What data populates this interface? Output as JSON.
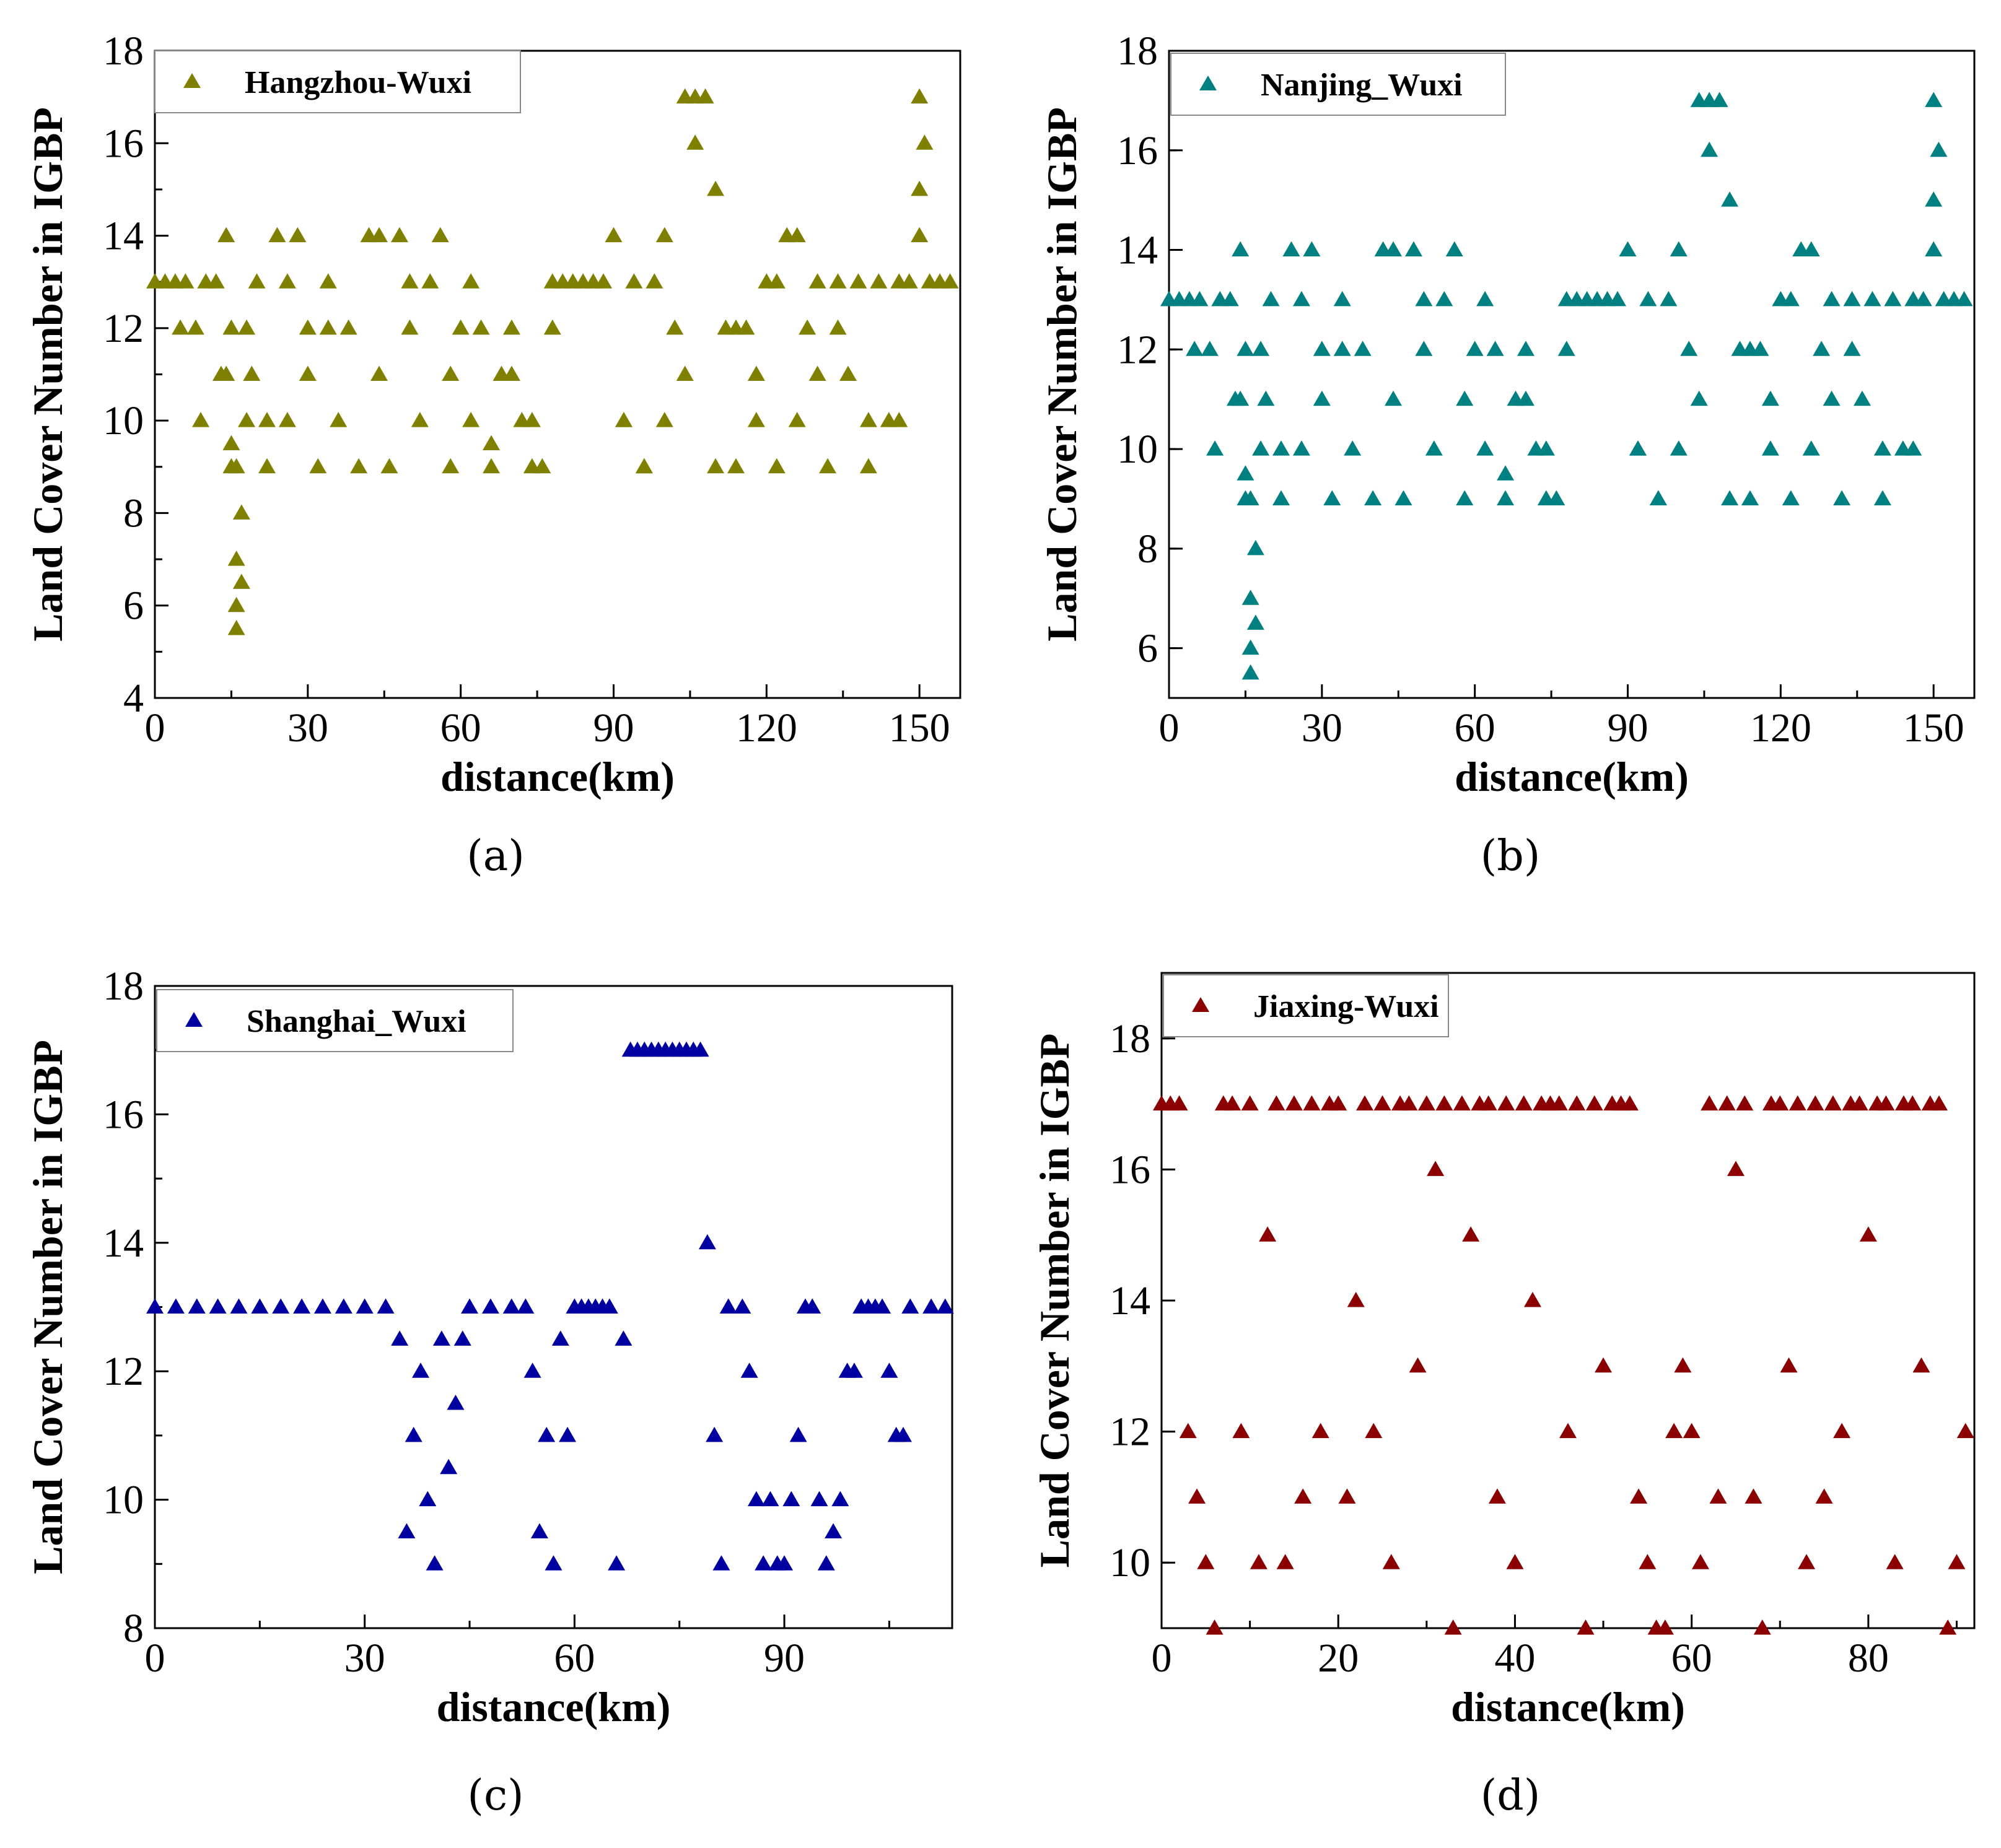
{
  "figure": {
    "panels": [
      {
        "id": "a",
        "caption": "(a)",
        "series_name": "Hangzhou-Wuxi",
        "color": "#808000",
        "xlabel": "distance(km)",
        "ylabel": "Land Cover Number in IGBP",
        "xticks": [
          "0",
          "30",
          "60",
          "90",
          "120",
          "150"
        ],
        "yticks": [
          "4",
          "6",
          "8",
          "10",
          "12",
          "14",
          "16",
          "18"
        ]
      },
      {
        "id": "b",
        "caption": "(b)",
        "series_name": "Nanjing_Wuxi",
        "color": "#008080",
        "xlabel": "distance(km)",
        "ylabel": "Land Cover Number in IGBP",
        "xticks": [
          "0",
          "30",
          "60",
          "90",
          "120",
          "150"
        ],
        "yticks": [
          "6",
          "8",
          "10",
          "12",
          "14",
          "16",
          "18"
        ]
      },
      {
        "id": "c",
        "caption": "(c)",
        "series_name": "Shanghai_Wuxi",
        "color": "#0000a0",
        "xlabel": "distance(km)",
        "ylabel": "Land Cover Number in IGBP",
        "xticks": [
          "0",
          "30",
          "60",
          "90"
        ],
        "yticks": [
          "8",
          "10",
          "12",
          "14",
          "16",
          "18"
        ]
      },
      {
        "id": "d",
        "caption": "(d)",
        "series_name": "Jiaxing-Wuxi",
        "color": "#8b0000",
        "xlabel": "distance(km)",
        "ylabel": "Land Cover Number in IGBP",
        "xticks": [
          "0",
          "20",
          "40",
          "60",
          "80"
        ],
        "yticks": [
          "10",
          "12",
          "14",
          "16",
          "18"
        ]
      }
    ]
  },
  "chart_data": [
    {
      "type": "scatter",
      "panel": "a",
      "marker": "triangle",
      "xlabel": "distance(km)",
      "ylabel": "Land Cover Number in IGBP",
      "xlim": [
        0,
        158
      ],
      "ylim": [
        4,
        18
      ],
      "series": [
        {
          "name": "Hangzhou-Wuxi",
          "color": "#808000",
          "x": [
            0,
            2,
            4,
            6,
            8,
            10,
            12,
            13,
            14,
            15,
            16,
            17,
            18,
            19,
            20,
            22,
            24,
            26,
            28,
            30,
            32,
            34,
            36,
            38,
            40,
            42,
            44,
            46,
            48,
            50,
            52,
            54,
            56,
            58,
            60,
            62,
            64,
            66,
            68,
            70,
            72,
            74,
            76,
            78,
            80,
            82,
            84,
            86,
            88,
            90,
            92,
            94,
            96,
            98,
            100,
            102,
            104,
            106,
            108,
            110,
            112,
            114,
            116,
            118,
            120,
            122,
            124,
            126,
            128,
            130,
            132,
            134,
            136,
            138,
            140,
            142,
            144,
            146,
            148,
            150,
            152,
            154,
            156,
            14,
            15,
            16,
            16,
            17,
            16,
            15,
            5,
            9,
            18,
            22,
            26,
            30,
            34,
            44,
            50,
            58,
            62,
            66,
            70,
            74,
            78,
            92,
            96,
            100,
            104,
            106,
            110,
            114,
            118,
            122,
            126,
            130,
            134,
            140,
            146,
            150,
            151,
            150
          ],
          "y": [
            13,
            13,
            13,
            13,
            12,
            13,
            13,
            11,
            14,
            9,
            5.5,
            8,
            10,
            11,
            13,
            9,
            14,
            10,
            14,
            12,
            9,
            13,
            10,
            12,
            9,
            14,
            14,
            9,
            14,
            12,
            10,
            13,
            14,
            9,
            12,
            10,
            12,
            9,
            11,
            12,
            10,
            9,
            9,
            13,
            13,
            13,
            13,
            13,
            13,
            14,
            10,
            13,
            9,
            13,
            10,
            12,
            17,
            17,
            17,
            9,
            12,
            9,
            12,
            11,
            13,
            9,
            14,
            10,
            12,
            13,
            9,
            13,
            11,
            13,
            9,
            13,
            10,
            13,
            13,
            17,
            13,
            13,
            13,
            11,
            12,
            6,
            7,
            6.5,
            9,
            9.5,
            12,
            10,
            12,
            10,
            13,
            11,
            12,
            11,
            13,
            11,
            13,
            9.5,
            11,
            10,
            12,
            10,
            9,
            14,
            11,
            16,
            15,
            12,
            10,
            13,
            14,
            11,
            12,
            10,
            10,
            15,
            16,
            14
          ]
        }
      ]
    },
    {
      "type": "scatter",
      "panel": "b",
      "marker": "triangle",
      "xlabel": "distance(km)",
      "ylabel": "Land Cover Number in IGBP",
      "xlim": [
        0,
        158
      ],
      "ylim": [
        5,
        18
      ],
      "series": [
        {
          "name": "Nanjing_Wuxi",
          "color": "#008080",
          "x": [
            0,
            2,
            4,
            6,
            8,
            10,
            12,
            13,
            14,
            15,
            16,
            17,
            18,
            19,
            20,
            22,
            24,
            26,
            28,
            30,
            32,
            34,
            36,
            38,
            40,
            42,
            44,
            46,
            48,
            50,
            52,
            54,
            56,
            58,
            60,
            62,
            64,
            66,
            68,
            70,
            72,
            74,
            76,
            78,
            80,
            82,
            84,
            86,
            88,
            90,
            92,
            94,
            96,
            98,
            100,
            102,
            104,
            106,
            108,
            110,
            112,
            114,
            116,
            118,
            120,
            122,
            124,
            126,
            128,
            130,
            132,
            134,
            136,
            138,
            140,
            142,
            144,
            146,
            148,
            150,
            152,
            154,
            156,
            14,
            15,
            16,
            16,
            17,
            16,
            15,
            5,
            9,
            18,
            22,
            26,
            30,
            34,
            44,
            50,
            58,
            62,
            66,
            70,
            74,
            78,
            92,
            96,
            100,
            104,
            106,
            110,
            114,
            118,
            122,
            126,
            130,
            134,
            140,
            146,
            150,
            151,
            150
          ],
          "y": [
            13,
            13,
            13,
            13,
            12,
            13,
            13,
            11,
            14,
            9,
            5.5,
            8,
            10,
            11,
            13,
            9,
            14,
            10,
            14,
            12,
            9,
            13,
            10,
            12,
            9,
            14,
            14,
            9,
            14,
            12,
            10,
            13,
            14,
            9,
            12,
            10,
            12,
            9,
            11,
            12,
            10,
            9,
            9,
            13,
            13,
            13,
            13,
            13,
            13,
            14,
            10,
            13,
            9,
            13,
            10,
            12,
            17,
            17,
            17,
            9,
            12,
            9,
            12,
            11,
            13,
            9,
            14,
            10,
            12,
            13,
            9,
            13,
            11,
            13,
            9,
            13,
            10,
            13,
            13,
            17,
            13,
            13,
            13,
            11,
            12,
            6,
            7,
            6.5,
            9,
            9.5,
            12,
            10,
            12,
            10,
            13,
            11,
            12,
            11,
            13,
            11,
            13,
            9.5,
            11,
            10,
            12,
            10,
            9,
            14,
            11,
            16,
            15,
            12,
            10,
            13,
            14,
            11,
            12,
            10,
            10,
            15,
            16,
            14
          ]
        }
      ]
    },
    {
      "type": "scatter",
      "panel": "c",
      "marker": "triangle",
      "xlabel": "distance(km)",
      "ylabel": "Land Cover Number in IGBP",
      "xlim": [
        0,
        114
      ],
      "ylim": [
        8,
        18
      ],
      "series": [
        {
          "name": "Shanghai_Wuxi",
          "color": "#0000a0",
          "x": [
            0,
            3,
            6,
            9,
            12,
            15,
            18,
            21,
            24,
            27,
            30,
            33,
            35,
            36,
            37,
            38,
            39,
            40,
            41,
            42,
            43,
            44,
            45,
            48,
            51,
            53,
            54,
            55,
            56,
            57,
            58,
            59,
            60,
            61,
            62,
            63,
            64,
            65,
            66,
            67,
            68,
            69,
            70,
            71,
            72,
            73,
            74,
            75,
            76,
            77,
            78,
            79,
            80,
            81,
            82,
            84,
            85,
            86,
            87,
            88,
            89,
            90,
            91,
            92,
            93,
            94,
            95,
            96,
            97,
            98,
            99,
            100,
            101,
            102,
            103,
            104,
            105,
            106,
            107,
            108,
            111,
            113
          ],
          "y": [
            13,
            13,
            13,
            13,
            13,
            13,
            13,
            13,
            13,
            13,
            13,
            13,
            12.5,
            9.5,
            11,
            12,
            10,
            9,
            12.5,
            10.5,
            11.5,
            12.5,
            13,
            13,
            13,
            13,
            12,
            9.5,
            11,
            9,
            12.5,
            11,
            13,
            13,
            13,
            13,
            13,
            13,
            9,
            12.5,
            17,
            17,
            17,
            17,
            17,
            17,
            17,
            17,
            17,
            17,
            17,
            14,
            11,
            9,
            13,
            13,
            12,
            10,
            9,
            10,
            9,
            9,
            10,
            11,
            13,
            13,
            10,
            9,
            9.5,
            10,
            12,
            12,
            13,
            13,
            13,
            13,
            12,
            11,
            11,
            13,
            13,
            13
          ]
        }
      ]
    },
    {
      "type": "scatter",
      "panel": "d",
      "marker": "triangle",
      "xlabel": "distance(km)",
      "ylabel": "Land Cover Number in IGBP",
      "xlim": [
        0,
        92
      ],
      "ylim": [
        9,
        19
      ],
      "series": [
        {
          "name": "Jiaxing-Wuxi",
          "color": "#8b0000",
          "x": [
            0,
            1,
            2,
            3,
            4,
            5,
            6,
            7,
            8,
            9,
            10,
            11,
            12,
            13,
            14,
            15,
            16,
            17,
            18,
            19,
            20,
            21,
            22,
            23,
            24,
            25,
            26,
            27,
            28,
            29,
            30,
            31,
            32,
            33,
            34,
            35,
            36,
            37,
            38,
            39,
            40,
            41,
            42,
            43,
            44,
            45,
            46,
            47,
            48,
            49,
            50,
            51,
            52,
            53,
            54,
            55,
            56,
            57,
            58,
            59,
            60,
            61,
            62,
            63,
            64,
            65,
            66,
            67,
            68,
            69,
            70,
            71,
            72,
            73,
            74,
            75,
            76,
            77,
            78,
            79,
            80,
            81,
            82,
            83,
            84,
            85,
            86,
            87,
            88,
            89,
            90,
            91
          ],
          "y": [
            17,
            17,
            17,
            12,
            11,
            10,
            9,
            17,
            17,
            12,
            17,
            10,
            15,
            17,
            10,
            17,
            11,
            17,
            12,
            17,
            17,
            11,
            14,
            17,
            12,
            17,
            10,
            17,
            17,
            13,
            17,
            16,
            17,
            9,
            17,
            15,
            17,
            17,
            11,
            17,
            10,
            17,
            14,
            17,
            17,
            17,
            12,
            17,
            9,
            17,
            13,
            17,
            17,
            17,
            11,
            10,
            9,
            9,
            12,
            13,
            12,
            10,
            17,
            11,
            17,
            16,
            17,
            11,
            9,
            17,
            17,
            13,
            17,
            10,
            17,
            11,
            17,
            12,
            17,
            17,
            15,
            17,
            17,
            10,
            17,
            17,
            13,
            17,
            17,
            9,
            10,
            12
          ]
        }
      ]
    }
  ]
}
